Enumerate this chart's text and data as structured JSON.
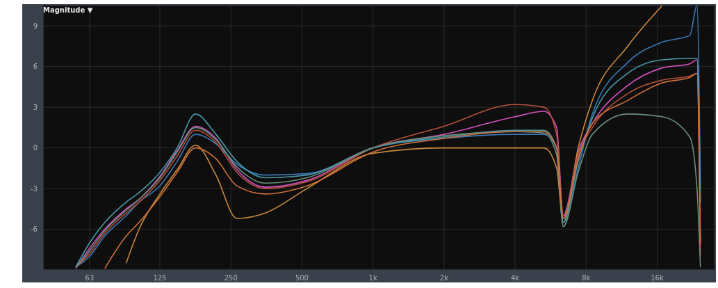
{
  "chart_data": {
    "type": "line",
    "title": "Magnitude ▼",
    "x": [
      55,
      63,
      73,
      90,
      102,
      125,
      148,
      177,
      216,
      265,
      350,
      525,
      1000,
      2000,
      4000,
      5300,
      6000,
      6400,
      7400,
      8500,
      12000,
      16800,
      22000,
      23600,
      24400
    ],
    "series": [
      {
        "color": "#d452c0",
        "values": [
          -8.9,
          -7.4,
          -6.0,
          -4.5,
          -3.8,
          -2.1,
          -0.2,
          1.6,
          0.7,
          -1.6,
          -2.9,
          -2.4,
          0,
          1.0,
          2.3,
          2.7,
          1.5,
          -5.0,
          -0.3,
          1.8,
          4.6,
          5.9,
          6.2,
          6.5,
          -7.1
        ]
      },
      {
        "color": "#3b78b8",
        "values": [
          -8.8,
          -8,
          -6.5,
          -5,
          -4,
          -2.8,
          -1,
          1.0,
          0.3,
          -1.2,
          -2.0,
          -1.9,
          0,
          0.7,
          1.0,
          1.0,
          0,
          -5.8,
          -1.5,
          2.5,
          6.3,
          7.8,
          8.3,
          10.5,
          -3
        ]
      },
      {
        "color": "#c98a3e",
        "values": [
          null,
          null,
          null,
          -8.5,
          -6,
          -3.4,
          -1.6,
          0.2,
          -2.0,
          -5.2,
          -4.8,
          -3.0,
          -0.4,
          0,
          0,
          0,
          -1.5,
          -5.5,
          0,
          3.5,
          7.5,
          10.5,
          null,
          null,
          null
        ]
      },
      {
        "color": "#b5523a",
        "values": [
          -8.8,
          -7.8,
          -6.3,
          -4.8,
          -4,
          -2.4,
          -0.6,
          1.3,
          0.4,
          -1.8,
          -3.0,
          -2.5,
          0,
          1.6,
          3.2,
          3.0,
          1.0,
          -5.2,
          -0.5,
          1.5,
          4.0,
          5.0,
          5.3,
          5.5,
          -8
        ]
      },
      {
        "color": "#4a9aa8",
        "values": [
          -8.8,
          -7,
          -5.5,
          -4,
          -3.3,
          -1.8,
          0,
          2.5,
          1.0,
          -1.0,
          -2.2,
          -2.0,
          0,
          0.8,
          1.3,
          1.3,
          0,
          -5.5,
          -1.0,
          2.2,
          5.5,
          6.5,
          6.6,
          6.6,
          -4
        ]
      },
      {
        "color": "#6b8e7a",
        "values": [
          -8.8,
          -7.6,
          -6.1,
          -4.6,
          -3.8,
          -2.2,
          -0.3,
          1.5,
          0.6,
          -1.4,
          -2.6,
          -2.2,
          0,
          0.9,
          1.2,
          1.1,
          -0.5,
          -5.8,
          -1.8,
          1.0,
          2.5,
          2.3,
          0.8,
          -3,
          -8.8
        ]
      },
      {
        "color": "#d0703a",
        "values": [
          null,
          null,
          -8.9,
          -6.5,
          -5.5,
          -3.6,
          -1.8,
          0,
          -0.8,
          -2.8,
          -3.4,
          -2.8,
          -0.3,
          0.7,
          1.2,
          1.2,
          0,
          -5.2,
          -0.8,
          1.8,
          3.5,
          4.8,
          5.2,
          5.5,
          -7
        ]
      }
    ],
    "log": "x",
    "xlim": [
      40,
      28000
    ],
    "xticks": [
      {
        "value": 63,
        "label": "63"
      },
      {
        "value": 125,
        "label": "125"
      },
      {
        "value": 250,
        "label": "250"
      },
      {
        "value": 500,
        "label": "500"
      },
      {
        "value": 1000,
        "label": "1k"
      },
      {
        "value": 2000,
        "label": "2k"
      },
      {
        "value": 4000,
        "label": "4k"
      },
      {
        "value": 8000,
        "label": "8k"
      },
      {
        "value": 16000,
        "label": "16k"
      }
    ],
    "ylim": [
      -9,
      10.5
    ],
    "yticks": [
      -6,
      -3,
      0,
      3,
      6,
      9
    ],
    "grid": true,
    "legend": false,
    "marker": "none",
    "line_style": "solid"
  }
}
